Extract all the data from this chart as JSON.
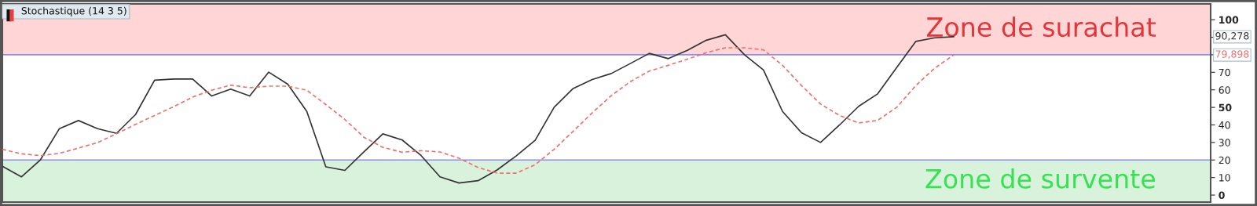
{
  "chart_data": {
    "type": "line",
    "title": "Stochastique (14 3 5)",
    "categories": [
      null,
      null,
      null,
      null,
      null,
      null,
      null,
      null,
      null,
      null,
      null,
      null,
      null,
      null,
      null,
      null,
      null,
      null,
      null,
      null,
      null,
      null,
      null,
      null,
      null,
      null,
      null,
      null,
      null,
      null,
      null,
      null,
      null,
      null,
      null,
      null,
      null,
      null,
      null,
      null,
      null,
      null,
      null,
      null,
      null,
      null,
      null,
      null,
      null,
      null,
      null,
      null,
      null,
      null,
      null,
      null,
      null,
      null,
      null,
      null,
      null,
      null,
      null,
      null
    ],
    "ylim": [
      -4,
      109
    ],
    "yticks": [
      0,
      10,
      20,
      30,
      40,
      50,
      60,
      70,
      {
        "value": 80,
        "label": null
      },
      {
        "value": 90,
        "label": null
      },
      100
    ],
    "tick_labels": "y",
    "series": [
      {
        "color": "#333333",
        "line_style": "solid",
        "values": [
          16.4,
          10.4,
          20.1,
          37.9,
          42.5,
          37.9,
          35.2,
          45.9,
          65.5,
          66.2,
          66.2,
          56.5,
          60.4,
          56.5,
          70.1,
          63.2,
          47.7,
          16.1,
          14.1,
          24.6,
          34.9,
          31.5,
          22.6,
          10.4,
          6.9,
          8.2,
          14.3,
          22.3,
          31.2,
          50.1,
          60.8,
          65.9,
          69.3,
          75.0,
          80.8,
          77.8,
          82.5,
          88.3,
          91.4,
          80.0,
          71.3,
          47.7,
          35.5,
          30.0,
          40.0,
          50.6,
          57.7,
          72.7,
          87.6,
          89.7,
          90.278,
          null,
          null,
          null,
          null,
          null,
          null,
          null,
          null,
          null,
          null,
          null,
          null,
          null
        ]
      },
      {
        "color": "#f07070",
        "line_style": "dashed",
        "values": [
          26.1,
          23.5,
          22.5,
          23.8,
          26.8,
          29.9,
          35.0,
          40.3,
          45.4,
          50.4,
          55.9,
          59.8,
          62.7,
          61.2,
          62.1,
          62.1,
          59.8,
          51.6,
          43.1,
          33.0,
          27.2,
          24.4,
          25.3,
          24.6,
          21.0,
          15.8,
          12.5,
          12.5,
          17.3,
          26.1,
          36.4,
          46.9,
          56.7,
          64.7,
          70.7,
          74.0,
          77.5,
          81.2,
          84.0,
          84.0,
          82.8,
          74.0,
          62.4,
          51.9,
          45.4,
          41.1,
          42.6,
          50.0,
          62.4,
          72.4,
          79.898,
          null,
          null,
          null,
          null,
          null,
          null,
          null,
          null,
          null,
          null,
          null,
          null,
          null
        ]
      }
    ],
    "bands": [
      {
        "axis": "y",
        "from": 80,
        "to": 109,
        "label": "Zone de surachat",
        "color": "#ffd5d6"
      },
      {
        "axis": "y",
        "from": -4,
        "to": 20,
        "label": "Zone de survente",
        "color": "#d8f2dc"
      }
    ],
    "ref_lines": [
      {
        "axis": "y",
        "value": 80,
        "color": "#8c8cf5",
        "line_style": "solid"
      },
      {
        "axis": "y",
        "value": 20,
        "color": "#8c8cf5",
        "line_style": "solid"
      }
    ],
    "annotations": [
      "90,278",
      "79,898"
    ]
  }
}
